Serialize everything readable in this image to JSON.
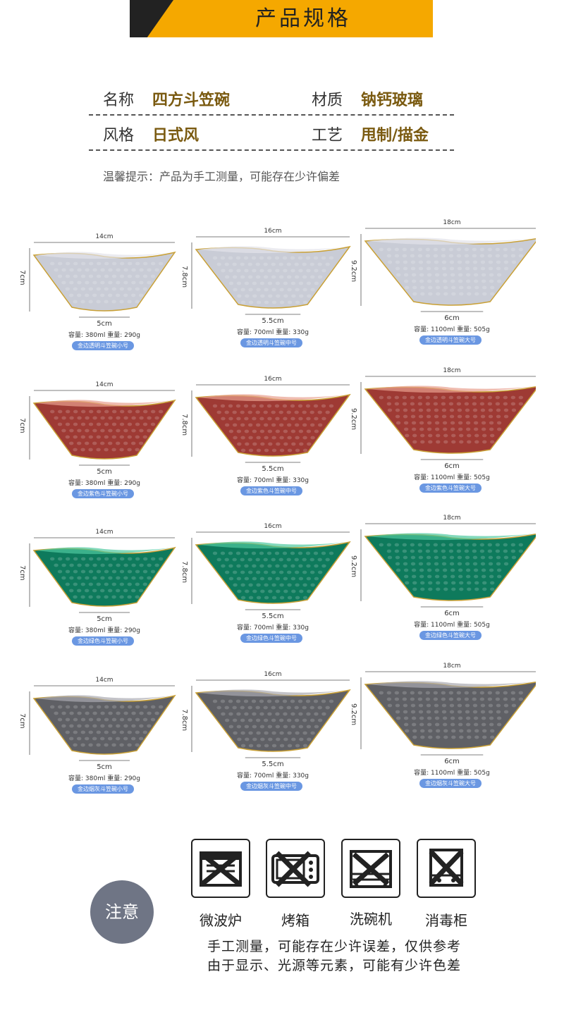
{
  "header": {
    "title": "产品规格"
  },
  "specs": {
    "name_label": "名称",
    "name_value": "四方斗笠碗",
    "material_label": "材质",
    "material_value": "钠钙玻璃",
    "style_label": "风格",
    "style_value": "日式风",
    "craft_label": "工艺",
    "craft_value": "甩制/描金"
  },
  "tip": "温馨提示：产品为手工测量，可能存在少许偏差",
  "sizes": [
    {
      "width": "14cm",
      "height": "7cm",
      "base": "5cm",
      "capacity": "容量: 380ml 重量: 290g"
    },
    {
      "width": "16cm",
      "height": "7.8cm",
      "base": "5.5cm",
      "capacity": "容量: 700ml 重量: 330g"
    },
    {
      "width": "18cm",
      "height": "9.2cm",
      "base": "6cm",
      "capacity": "容量: 1100ml 重量: 505g"
    }
  ],
  "rows": [
    {
      "color": "#c9ccd6",
      "rim": "#e3e3ea",
      "tags": [
        "金边透明斗笠碗小号",
        "金边透明斗笠碗中号",
        "金边透明斗笠碗大号"
      ]
    },
    {
      "color": "#9e3a34",
      "rim": "#e8a08e",
      "tags": [
        "金边紫色斗笠碗小号",
        "金边紫色斗笠碗中号",
        "金边紫色斗笠碗大号"
      ]
    },
    {
      "color": "#0e7a5c",
      "rim": "#4fc9a0",
      "tags": [
        "金边绿色斗笠碗小号",
        "金边绿色斗笠碗中号",
        "金边绿色斗笠碗大号"
      ]
    },
    {
      "color": "#5f6065",
      "rim": "#a9aab0",
      "tags": [
        "金边烟灰斗笠碗小号",
        "金边烟灰斗笠碗中号",
        "金边烟灰斗笠碗大号"
      ]
    }
  ],
  "notice": {
    "badge": "注意",
    "icons": [
      {
        "label": "微波炉",
        "icon": "microwave-icon"
      },
      {
        "label": "烤箱",
        "icon": "oven-icon"
      },
      {
        "label": "洗碗机",
        "icon": "dishwasher-icon"
      },
      {
        "label": "消毒柜",
        "icon": "sterilizer-cabinet-icon"
      }
    ],
    "line1": "手工测量，可能存在少许误差，仅供参考",
    "line2": "由于显示、光源等元素，可能有少许色差"
  },
  "colors": {
    "accent": "#f5a800",
    "gold_rim": "#c9a035",
    "tag": "#6a97e2"
  }
}
